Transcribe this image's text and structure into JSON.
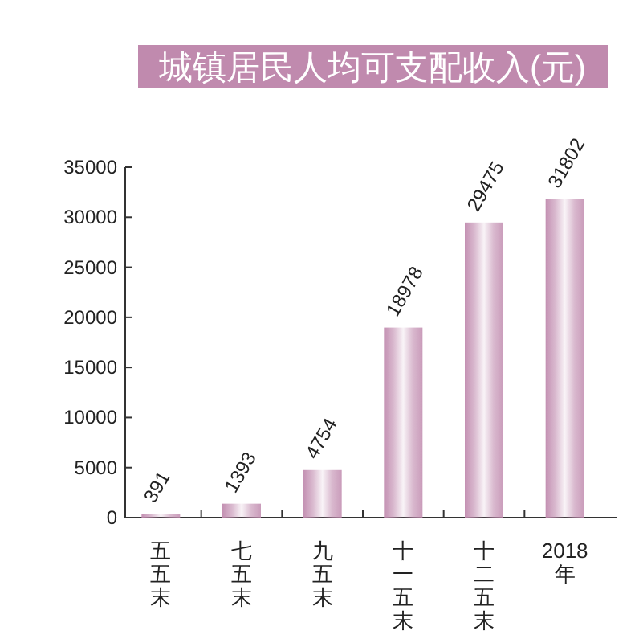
{
  "chart_data": {
    "type": "bar",
    "title": "城镇居民人均可支配收入(元)",
    "categories": [
      "五五末",
      "七五末",
      "九五末",
      "十一五末",
      "十二五末",
      "2018年"
    ],
    "values": [
      391,
      1393,
      4754,
      18978,
      29475,
      31802
    ],
    "color": "#c08aae",
    "ylim": [
      0,
      35000
    ],
    "yticks": [
      0,
      5000,
      10000,
      15000,
      20000,
      25000,
      30000,
      35000
    ],
    "data_labels": true
  }
}
